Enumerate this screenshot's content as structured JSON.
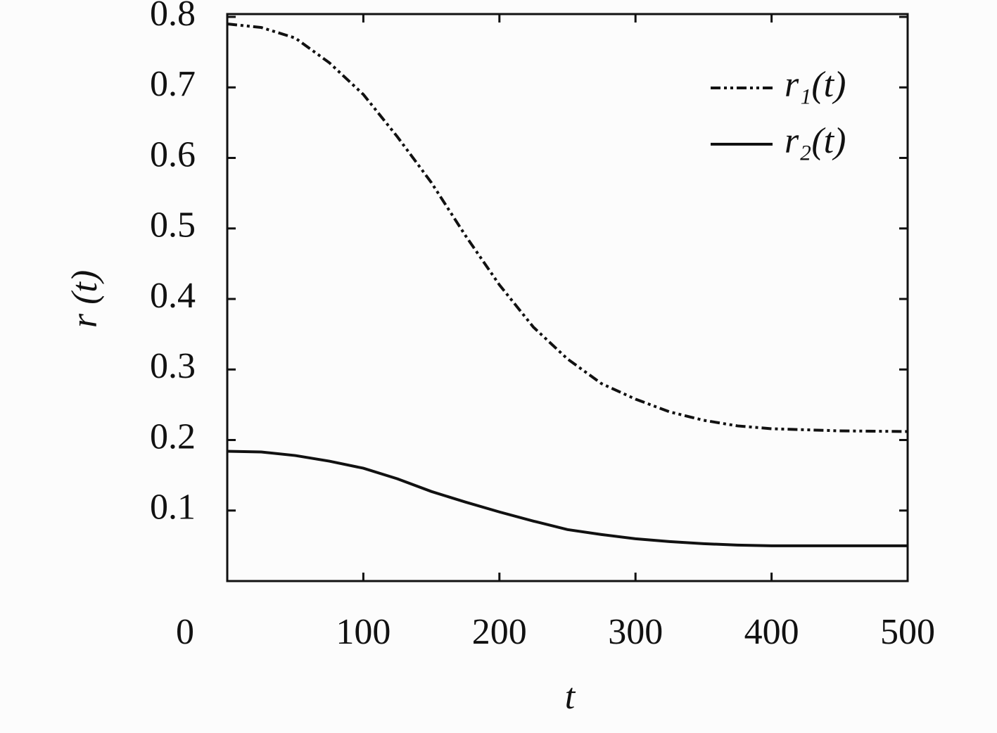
{
  "chart_data": {
    "type": "line",
    "x_label": "t",
    "y_label": "r (t)",
    "x": [
      0,
      25,
      50,
      75,
      100,
      125,
      150,
      175,
      200,
      225,
      250,
      275,
      300,
      325,
      350,
      375,
      400,
      450,
      500
    ],
    "series": [
      {
        "name": "r₁(t)",
        "color": "#111111",
        "dash": "dash-dot-dot",
        "values": [
          0.79,
          0.785,
          0.77,
          0.735,
          0.69,
          0.63,
          0.565,
          0.49,
          0.42,
          0.36,
          0.315,
          0.28,
          0.258,
          0.24,
          0.228,
          0.22,
          0.216,
          0.213,
          0.212
        ]
      },
      {
        "name": "r₂(t)",
        "color": "#111111",
        "dash": "solid",
        "values": [
          0.184,
          0.183,
          0.178,
          0.17,
          0.16,
          0.145,
          0.127,
          0.112,
          0.098,
          0.085,
          0.073,
          0.066,
          0.06,
          0.056,
          0.053,
          0.051,
          0.05,
          0.05,
          0.05
        ]
      }
    ],
    "xlim": [
      0,
      500
    ],
    "ylim": [
      0,
      0.8
    ],
    "xticks": [
      0,
      100,
      200,
      300,
      400,
      500
    ],
    "yticks": [
      0.1,
      0.2,
      0.3,
      0.4,
      0.5,
      0.6,
      0.7,
      0.8
    ],
    "grid": false,
    "legend": "upper right"
  }
}
